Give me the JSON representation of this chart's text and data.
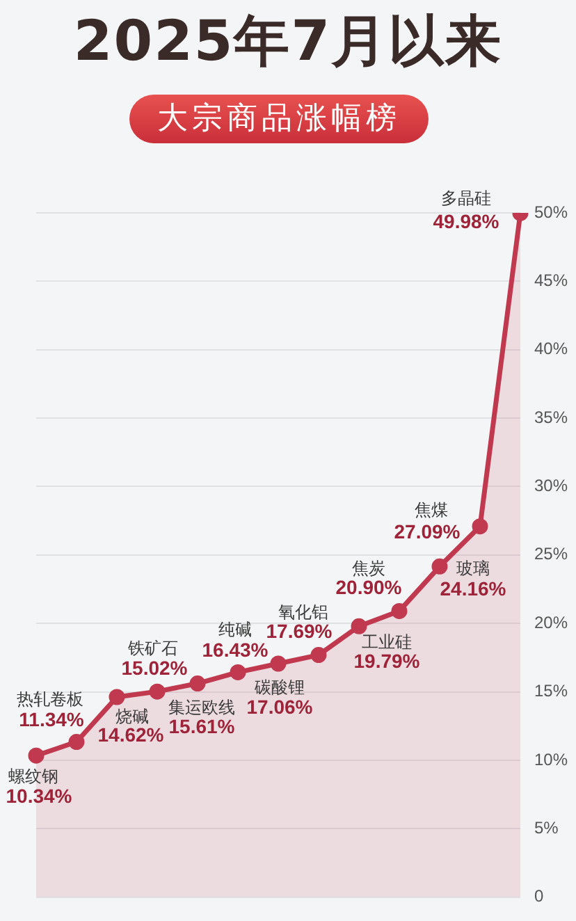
{
  "chart_data": {
    "type": "area",
    "title": "2025年7月以来",
    "subtitle": "大宗商品涨幅榜",
    "categories": [
      null,
      null,
      null,
      null,
      null,
      null,
      null,
      null,
      null,
      null,
      null,
      null,
      null
    ],
    "values": [
      10.34,
      11.34,
      14.62,
      15.02,
      15.61,
      16.43,
      17.06,
      17.69,
      19.79,
      20.9,
      24.16,
      27.09,
      49.98
    ],
    "value_labels": [
      "10.34%",
      "11.34%",
      "14.62%",
      "15.02%",
      "15.61%",
      "16.43%",
      "17.06%",
      "17.69%",
      "19.79%",
      "20.90%",
      "24.16%",
      "27.09%",
      "49.98%"
    ],
    "annotations": [
      "螺纹钢",
      "热轧卷板",
      "烧碱",
      "铁矿石",
      "集运欧线",
      "纯碱",
      "碳酸锂",
      "氧化铝",
      "工业硅",
      "焦炭",
      "玻璃",
      "焦煤",
      "多晶硅"
    ],
    "color": "#c0394f",
    "ylim": [
      0,
      50
    ],
    "yticks": [
      0,
      {
        "value": 5,
        "label": "5%"
      },
      {
        "value": 10,
        "label": "10%"
      },
      {
        "value": 15,
        "label": "15%"
      },
      {
        "value": 20,
        "label": "20%"
      },
      {
        "value": 25,
        "label": "25%"
      },
      {
        "value": 30,
        "label": "30%"
      },
      {
        "value": 35,
        "label": "35%"
      },
      {
        "value": 40,
        "label": "40%"
      },
      {
        "value": 45,
        "label": "45%"
      },
      {
        "value": 50,
        "label": "50%"
      }
    ],
    "grid": "y",
    "marker": "circle",
    "tick_labels": "y"
  }
}
